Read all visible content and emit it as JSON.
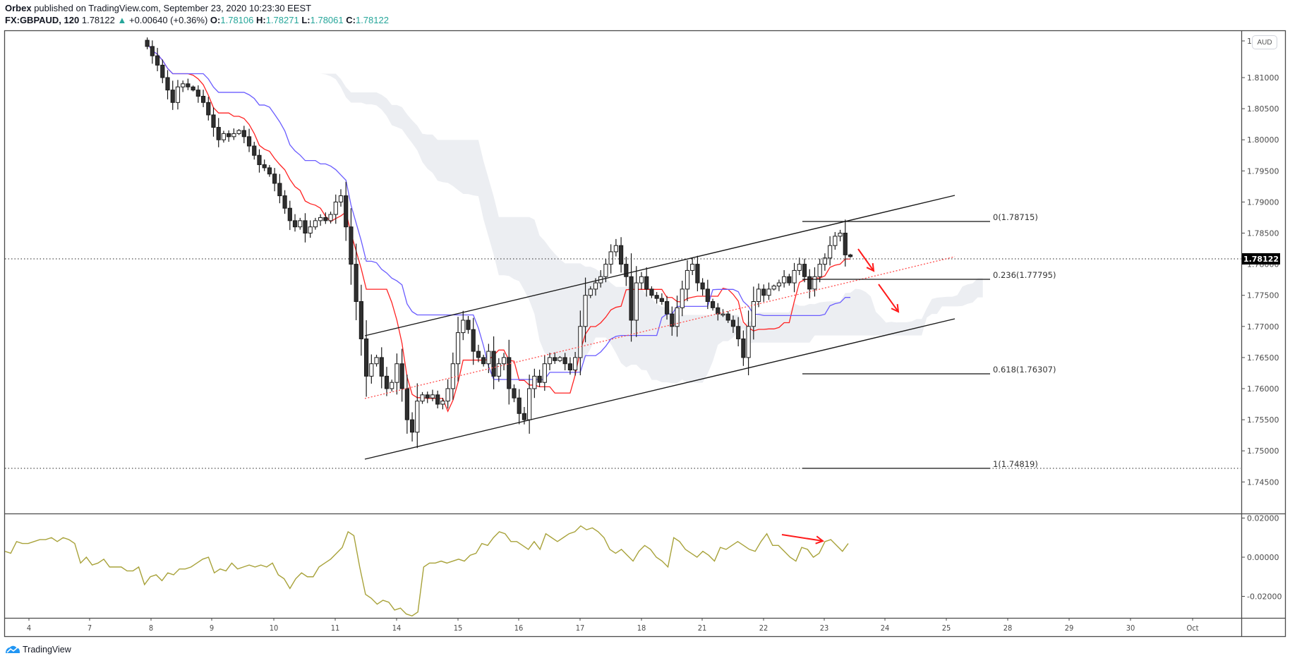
{
  "header": {
    "publisher": "Orbex",
    "published_text": "published on TradingView.com, September 23, 2020 10:23:30 EEST",
    "symbol": "FX:GBPAUD, 120",
    "last": "1.78122",
    "change": "+0.00640 (+0.36%)",
    "open_label": "O:",
    "open": "1.78106",
    "high_label": "H:",
    "high": "1.78271",
    "low_label": "L:",
    "low": "1.78061",
    "close_label": "C:",
    "close": "1.78122"
  },
  "price_axis": {
    "currency_badge": "AUD",
    "last_price_label": "1.78122",
    "top_partial_label": "1",
    "ticks": [
      "1.81000",
      "1.80500",
      "1.80000",
      "1.79500",
      "1.79000",
      "1.78500",
      "1.78000",
      "1.77500",
      "1.77000",
      "1.76500",
      "1.76000",
      "1.75500",
      "1.75000",
      "1.74500"
    ]
  },
  "osc_axis": {
    "ticks": [
      "0.02000",
      "0.00000",
      "-0.02000"
    ]
  },
  "time_axis": {
    "ticks": [
      "4",
      "7",
      "8",
      "9",
      "10",
      "11",
      "14",
      "15",
      "16",
      "17",
      "18",
      "21",
      "22",
      "23",
      "24",
      "25",
      "28",
      "29",
      "30",
      "Oct"
    ]
  },
  "fib_levels": [
    {
      "ratio": "0",
      "price": "1.78715",
      "label": "0(1.78715)"
    },
    {
      "ratio": "0.236",
      "price": "1.77795",
      "label": "0.236(1.77795)"
    },
    {
      "ratio": "0.618",
      "price": "1.76307",
      "label": "0.618(1.76307)"
    },
    {
      "ratio": "1",
      "price": "1.74819",
      "label": "1(1.74819)"
    }
  ],
  "branding": {
    "logo_text": "TradingView"
  },
  "colors": {
    "bull_body": "#ffffff",
    "bear_body": "#2f2f2f",
    "tenkan": "#ff2222",
    "kijun": "#6a5cff",
    "cloud": "#eceef2",
    "oscillator": "#a8a23a",
    "annotation_arrow": "#ff1a1a",
    "channel": "#1a1a1a"
  },
  "chart_data": {
    "type": "candlestick",
    "title": "FX:GBPAUD, 120",
    "interval": "120 minutes",
    "xlabel": "",
    "ylabel": "AUD",
    "ylim": [
      1.7425,
      1.8125
    ],
    "grid": false,
    "last_price": 1.78122,
    "ohlc_last": {
      "open": 1.78106,
      "high": 1.78271,
      "low": 1.78061,
      "close": 1.78122
    },
    "x_ticks": [
      "4",
      "7",
      "8",
      "9",
      "10",
      "11",
      "14",
      "15",
      "16",
      "17",
      "18",
      "21",
      "22",
      "23",
      "24",
      "25",
      "28",
      "29",
      "30",
      "Oct"
    ],
    "candles_close_approx": [
      1.815,
      1.8135,
      1.812,
      1.81,
      1.808,
      1.806,
      1.8085,
      1.809,
      1.8085,
      1.808,
      1.807,
      1.806,
      1.804,
      1.802,
      1.8,
      1.801,
      1.8005,
      1.801,
      1.8015,
      1.8005,
      1.799,
      1.7975,
      1.796,
      1.7955,
      1.7945,
      1.793,
      1.791,
      1.789,
      1.787,
      1.786,
      1.787,
      1.785,
      1.786,
      1.787,
      1.7875,
      1.787,
      1.788,
      1.79,
      1.791,
      1.786,
      1.78,
      1.774,
      1.768,
      1.762,
      1.764,
      1.765,
      1.762,
      1.76,
      1.761,
      1.764,
      1.76,
      1.755,
      1.753,
      1.758,
      1.759,
      1.7585,
      1.759,
      1.7575,
      1.758,
      1.76,
      1.764,
      1.769,
      1.771,
      1.7695,
      1.766,
      1.765,
      1.764,
      1.766,
      1.762,
      1.764,
      1.765,
      1.76,
      1.7585,
      1.756,
      1.755,
      1.76,
      1.762,
      1.761,
      1.764,
      1.765,
      1.7645,
      1.765,
      1.764,
      1.763,
      1.765,
      1.77,
      1.775,
      1.776,
      1.777,
      1.778,
      1.78,
      1.782,
      1.783,
      1.78,
      1.778,
      1.771,
      1.777,
      1.778,
      1.776,
      1.775,
      1.7745,
      1.774,
      1.772,
      1.77,
      1.773,
      1.776,
      1.779,
      1.78,
      1.777,
      1.776,
      1.774,
      1.773,
      1.772,
      1.772,
      1.771,
      1.77,
      1.768,
      1.765,
      1.77,
      1.774,
      1.776,
      1.775,
      1.776,
      1.7765,
      1.777,
      1.778,
      1.777,
      1.779,
      1.78,
      1.778,
      1.776,
      1.778,
      1.78,
      1.781,
      1.783,
      1.7845,
      1.785,
      1.7815,
      1.78122
    ],
    "series": [
      {
        "name": "Tenkan-sen",
        "color": "#ff2222"
      },
      {
        "name": "Kijun-sen",
        "color": "#6a5cff"
      },
      {
        "name": "Ichimoku Cloud",
        "color": "#eceef2"
      }
    ],
    "drawings": {
      "ascending_channel": {
        "upper": [
          {
            "date": "11",
            "price": 1.7695
          },
          {
            "date": "25",
            "price": 1.7912
          }
        ],
        "lower": [
          {
            "date": "11",
            "price": 1.7495
          },
          {
            "date": "25",
            "price": 1.7717
          }
        ]
      },
      "midline_dotted_red": [
        {
          "date": "11",
          "price": 1.7645
        },
        {
          "date": "25",
          "price": 1.7812
        }
      ],
      "horizontal_dotted_lines": [
        1.78122,
        1.74819
      ],
      "fibonacci_retracement": [
        {
          "level": 0,
          "price": 1.78715
        },
        {
          "level": 0.236,
          "price": 1.77795
        },
        {
          "level": 0.618,
          "price": 1.76307
        },
        {
          "level": 1,
          "price": 1.74819
        }
      ],
      "arrows": [
        "down-right near 1.780 (Sep 23-24)",
        "down-right toward 1.775 (Sep 24)",
        "right-down on oscillator (Sep 22-23)"
      ]
    },
    "oscillator": {
      "ylim": [
        -0.025,
        0.022
      ],
      "ticks": [
        0.02,
        0.0,
        -0.02
      ],
      "values_approx": [
        0.003,
        0.002,
        0.008,
        0.007,
        0.007,
        0.008,
        0.009,
        0.009,
        0.01,
        0.008,
        0.01,
        0.009,
        0.007,
        -0.003,
        0.0,
        -0.004,
        -0.003,
        -0.001,
        -0.005,
        -0.005,
        -0.005,
        -0.007,
        -0.007,
        -0.005,
        -0.014,
        -0.01,
        -0.009,
        -0.012,
        -0.008,
        -0.009,
        -0.006,
        -0.006,
        -0.005,
        -0.003,
        -0.001,
        0.0,
        -0.008,
        -0.006,
        -0.007,
        -0.003,
        -0.006,
        -0.005,
        -0.004,
        -0.005,
        -0.004,
        -0.005,
        -0.003,
        -0.009,
        -0.011,
        -0.016,
        -0.011,
        -0.008,
        -0.01,
        -0.01,
        -0.005,
        -0.003,
        -0.001,
        0.002,
        0.005,
        0.013,
        0.011,
        -0.005,
        -0.019,
        -0.021,
        -0.024,
        -0.022,
        -0.023,
        -0.027,
        -0.026,
        -0.029,
        -0.03,
        -0.028,
        -0.005,
        -0.003,
        -0.003,
        -0.002,
        -0.003,
        -0.002,
        -0.001,
        -0.002,
        0.001,
        0.002,
        0.007,
        0.006,
        0.01,
        0.013,
        0.012,
        0.008,
        0.008,
        0.006,
        0.004,
        0.008,
        0.004,
        0.012,
        0.01,
        0.008,
        0.01,
        0.012,
        0.013,
        0.016,
        0.014,
        0.015,
        0.013,
        0.01,
        0.004,
        0.002,
        0.004,
        0.001,
        -0.002,
        0.003,
        0.006,
        0.004,
        0.0,
        -0.002,
        -0.005,
        0.01,
        0.008,
        0.004,
        0.002,
        0.0,
        0.003,
        0.001,
        -0.002,
        0.005,
        0.004,
        0.006,
        0.008,
        0.006,
        0.004,
        0.003,
        0.008,
        0.012,
        0.006,
        0.006,
        0.003,
        0.0,
        -0.002,
        0.005,
        0.004,
        0.0,
        0.002,
        0.008,
        0.009,
        0.006,
        0.003,
        0.007
      ]
    }
  }
}
